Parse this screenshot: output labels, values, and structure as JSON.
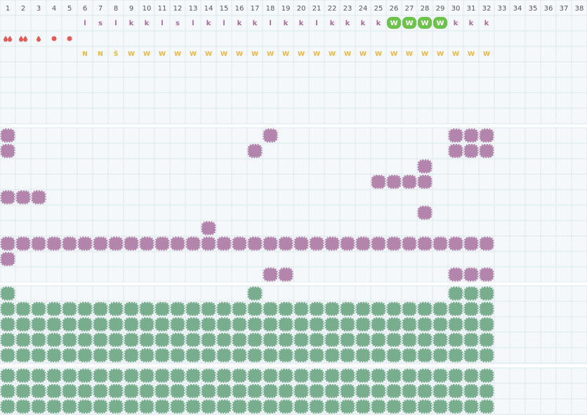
{
  "header": {
    "days": [
      1,
      2,
      3,
      4,
      5,
      6,
      7,
      8,
      9,
      10,
      11,
      12,
      13,
      14,
      15,
      16,
      17,
      18,
      19,
      20,
      21,
      22,
      23,
      24,
      25,
      26,
      27,
      28,
      29,
      30,
      31,
      32,
      33,
      34,
      35,
      36,
      37,
      38
    ]
  },
  "symptoms": {
    "values": [
      null,
      null,
      null,
      null,
      null,
      "l",
      "s",
      "l",
      "k",
      "k",
      "l",
      "s",
      "l",
      "k",
      "l",
      "k",
      "k",
      "l",
      "k",
      "k",
      "l",
      "k",
      "k",
      "k",
      "k",
      "W",
      "W",
      "W",
      "W",
      "k",
      "k",
      "k",
      null,
      null,
      null,
      null,
      null,
      null
    ],
    "badge_days": [
      26,
      27,
      28,
      29
    ]
  },
  "moods": {
    "values": [
      null,
      null,
      null,
      null,
      null,
      "N",
      "N",
      "Ś",
      "W",
      "W",
      "W",
      "W",
      "W",
      "W",
      "W",
      "W",
      "W",
      "W",
      "W",
      "W",
      "W",
      "W",
      "W",
      "W",
      "W",
      "W",
      "W",
      "W",
      "W",
      "W",
      "W",
      "W",
      null,
      null,
      null,
      null,
      null,
      null
    ]
  },
  "purple_rows": [
    [
      1,
      18,
      30,
      31,
      32
    ],
    [
      1,
      17,
      30,
      31,
      32
    ],
    [
      28
    ],
    [
      25,
      26,
      27,
      28
    ],
    [
      1,
      2,
      3
    ],
    [
      28
    ],
    [
      14
    ],
    [
      1,
      2,
      3,
      4,
      5,
      6,
      7,
      8,
      9,
      10,
      11,
      12,
      13,
      14,
      15,
      16,
      17,
      18,
      19,
      20,
      21,
      22,
      23,
      24,
      25,
      26,
      27,
      28,
      29,
      30,
      31,
      32
    ],
    [
      1
    ],
    [
      18,
      19,
      30,
      31,
      32
    ]
  ],
  "green_rows": [
    [
      1,
      17,
      30,
      31,
      32
    ],
    [
      1,
      2,
      3,
      4,
      5,
      6,
      7,
      8,
      9,
      10,
      11,
      12,
      13,
      14,
      15,
      16,
      17,
      18,
      19,
      20,
      21,
      22,
      23,
      24,
      25,
      26,
      27,
      28,
      29,
      30,
      31,
      32
    ],
    [
      1,
      2,
      3,
      4,
      5,
      6,
      7,
      8,
      9,
      10,
      11,
      12,
      13,
      14,
      15,
      16,
      17,
      18,
      19,
      20,
      21,
      22,
      23,
      24,
      25,
      26,
      27,
      28,
      29,
      30,
      31,
      32
    ],
    [
      1,
      2,
      3,
      4,
      5,
      6,
      7,
      8,
      9,
      10,
      11,
      12,
      13,
      14,
      15,
      16,
      17,
      18,
      19,
      20,
      21,
      22,
      23,
      24,
      25,
      26,
      27,
      28,
      29,
      30,
      31,
      32
    ],
    [
      1,
      2,
      3,
      4,
      5,
      6,
      7,
      8,
      9,
      10,
      11,
      12,
      13,
      14,
      15,
      16,
      17,
      18,
      19,
      20,
      21,
      22,
      23,
      24,
      25,
      26,
      27,
      28,
      29,
      30,
      31,
      32
    ]
  ],
  "green_rows_2": [
    [
      1,
      2,
      3,
      4,
      5,
      6,
      7,
      8,
      9,
      10,
      11,
      12,
      13,
      14,
      15,
      16,
      17,
      18,
      19,
      20,
      21,
      22,
      23,
      24,
      25,
      26,
      27,
      28,
      29,
      30,
      31,
      32
    ],
    [
      1,
      2,
      3,
      4,
      5,
      6,
      7,
      8,
      9,
      10,
      11,
      12,
      13,
      14,
      15,
      16,
      17,
      18,
      19,
      20,
      21,
      22,
      23,
      24,
      25,
      26,
      27,
      28,
      29,
      30,
      31,
      32
    ],
    [
      1,
      2,
      3,
      4,
      5,
      6,
      7,
      8,
      9,
      10,
      11,
      12,
      13,
      14,
      15,
      16,
      17,
      18,
      19,
      20,
      21,
      22,
      23,
      24,
      25,
      26,
      27,
      28,
      29,
      30,
      31,
      32
    ]
  ]
}
